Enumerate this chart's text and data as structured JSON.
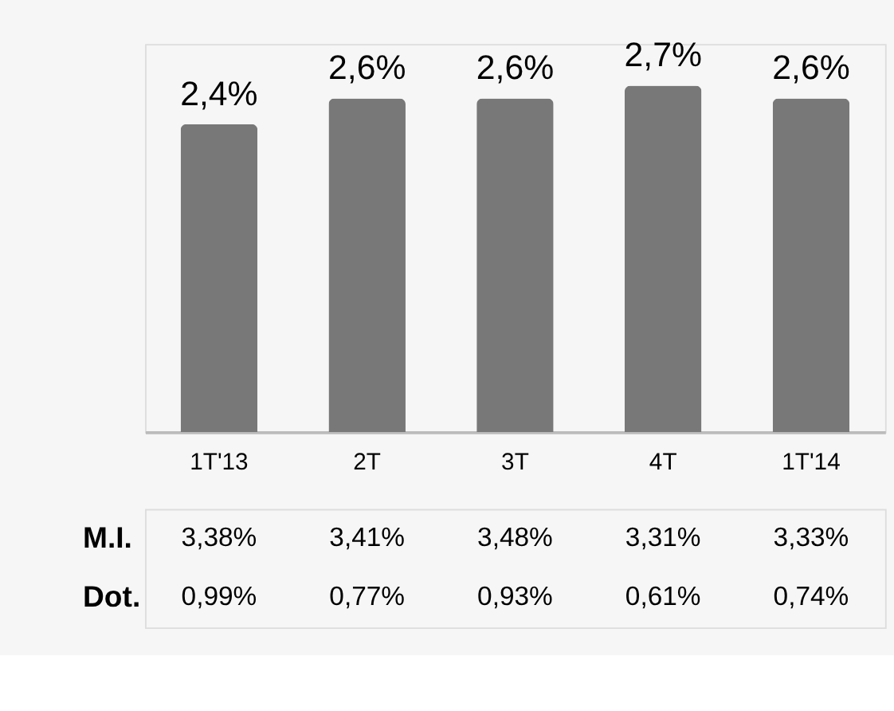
{
  "chart_data": [
    {
      "type": "bar",
      "categories": [
        "1T'13",
        "2T",
        "3T",
        "4T",
        "1T'14"
      ],
      "values": [
        2.4,
        2.6,
        2.6,
        2.7,
        2.6
      ],
      "color": "#787878",
      "value_labels": [
        "2,4%",
        "2,6%",
        "2,6%",
        "2,7%",
        "2,6%"
      ],
      "grid": false
    },
    {
      "type": "other",
      "y_categories": [
        "M.I.",
        "Dot."
      ],
      "cell_labels": [
        [
          "3,38%",
          "3,41%",
          "3,48%",
          "3,31%",
          "3,33%"
        ],
        [
          "0,99%",
          "0,77%",
          "0,93%",
          "0,61%",
          "0,74%"
        ]
      ]
    }
  ]
}
